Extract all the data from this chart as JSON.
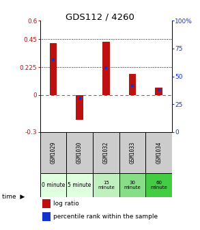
{
  "title": "GDS112 / 4260",
  "samples": [
    "GSM1029",
    "GSM1030",
    "GSM1032",
    "GSM1033",
    "GSM1034"
  ],
  "log_ratios": [
    0.42,
    -0.2,
    0.43,
    0.17,
    0.06
  ],
  "percentile_ranks": [
    65,
    30,
    58,
    42,
    38
  ],
  "time_labels": [
    "0 minute",
    "5 minute",
    "15\nminute",
    "30\nminute",
    "60\nminute"
  ],
  "time_colors": [
    "#dfffdf",
    "#dfffdf",
    "#c0f0c0",
    "#88dd88",
    "#44cc44"
  ],
  "bar_color_red": "#bb1111",
  "bar_color_blue": "#1133cc",
  "ylim_left": [
    -0.3,
    0.6
  ],
  "ylim_right": [
    0,
    100
  ],
  "yticks_left": [
    -0.3,
    0,
    0.225,
    0.45,
    0.6
  ],
  "ytick_labels_left": [
    "-0.3",
    "0",
    "0.225",
    "0.45",
    "0.6"
  ],
  "yticks_right": [
    0,
    25,
    50,
    75,
    100
  ],
  "ytick_labels_right": [
    "0",
    "25",
    "50",
    "75",
    "100%"
  ],
  "hlines": [
    0.225,
    0.45
  ],
  "zero_line": 0,
  "red_bar_width": 0.28,
  "blue_marker_size": 7,
  "legend_labels": [
    "log ratio",
    "percentile rank within the sample"
  ],
  "time_row_label": "time"
}
